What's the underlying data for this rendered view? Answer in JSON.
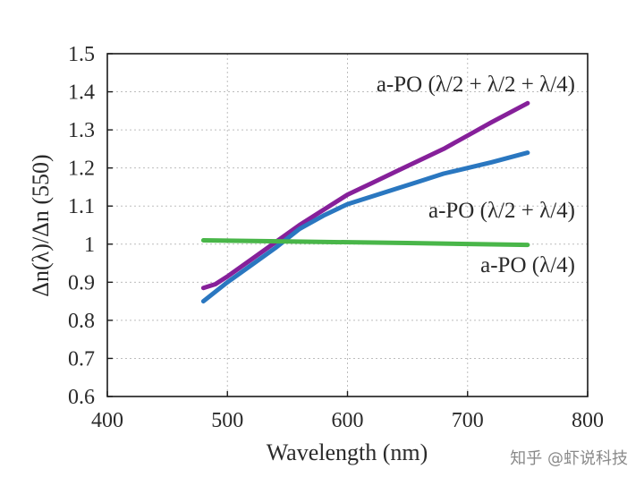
{
  "chart_data": {
    "type": "line",
    "title": "",
    "xlabel": "Wavelength (nm)",
    "ylabel": "Δn(λ)/Δn (550)",
    "xlim": [
      400,
      800
    ],
    "ylim": [
      0.6,
      1.5
    ],
    "xticks": [
      400,
      500,
      600,
      700,
      800
    ],
    "yticks": [
      0.6,
      0.7,
      0.8,
      0.9,
      1.0,
      1.1,
      1.2,
      1.3,
      1.4,
      1.5
    ],
    "ytick_labels": [
      "0.6",
      "0.7",
      "0.8",
      "0.9",
      "1",
      "1.1",
      "1.2",
      "1.3",
      "1.4",
      "1.5"
    ],
    "grid": true,
    "series": [
      {
        "name": "a-PO (λ/2 + λ/2 + λ/4)",
        "color": "#86209a",
        "x": [
          480,
          490,
          500,
          520,
          540,
          560,
          580,
          600,
          620,
          640,
          650,
          680,
          700,
          720,
          750
        ],
        "y": [
          0.885,
          0.895,
          0.915,
          0.96,
          1.005,
          1.05,
          1.09,
          1.13,
          1.16,
          1.19,
          1.205,
          1.25,
          1.285,
          1.32,
          1.37
        ]
      },
      {
        "name": "a-PO (λ/2 + λ/4)",
        "color": "#2a77c0",
        "x": [
          480,
          500,
          520,
          540,
          560,
          580,
          600,
          620,
          640,
          660,
          680,
          700,
          720,
          750
        ],
        "y": [
          0.85,
          0.9,
          0.945,
          0.99,
          1.04,
          1.075,
          1.105,
          1.125,
          1.145,
          1.165,
          1.185,
          1.2,
          1.215,
          1.24
        ]
      },
      {
        "name": "a-PO (λ/4)",
        "color": "#49b649",
        "x": [
          480,
          550,
          650,
          750
        ],
        "y": [
          1.01,
          1.007,
          1.003,
          0.998
        ]
      }
    ],
    "annotations": [
      {
        "text": "a-PO (λ/2 + λ/2 + λ/4)",
        "series": 0
      },
      {
        "text": "a-PO (λ/2 + λ/4)",
        "series": 1
      },
      {
        "text": "a-PO (λ/4)",
        "series": 2
      }
    ]
  },
  "watermark": "知乎 @虾说科技"
}
